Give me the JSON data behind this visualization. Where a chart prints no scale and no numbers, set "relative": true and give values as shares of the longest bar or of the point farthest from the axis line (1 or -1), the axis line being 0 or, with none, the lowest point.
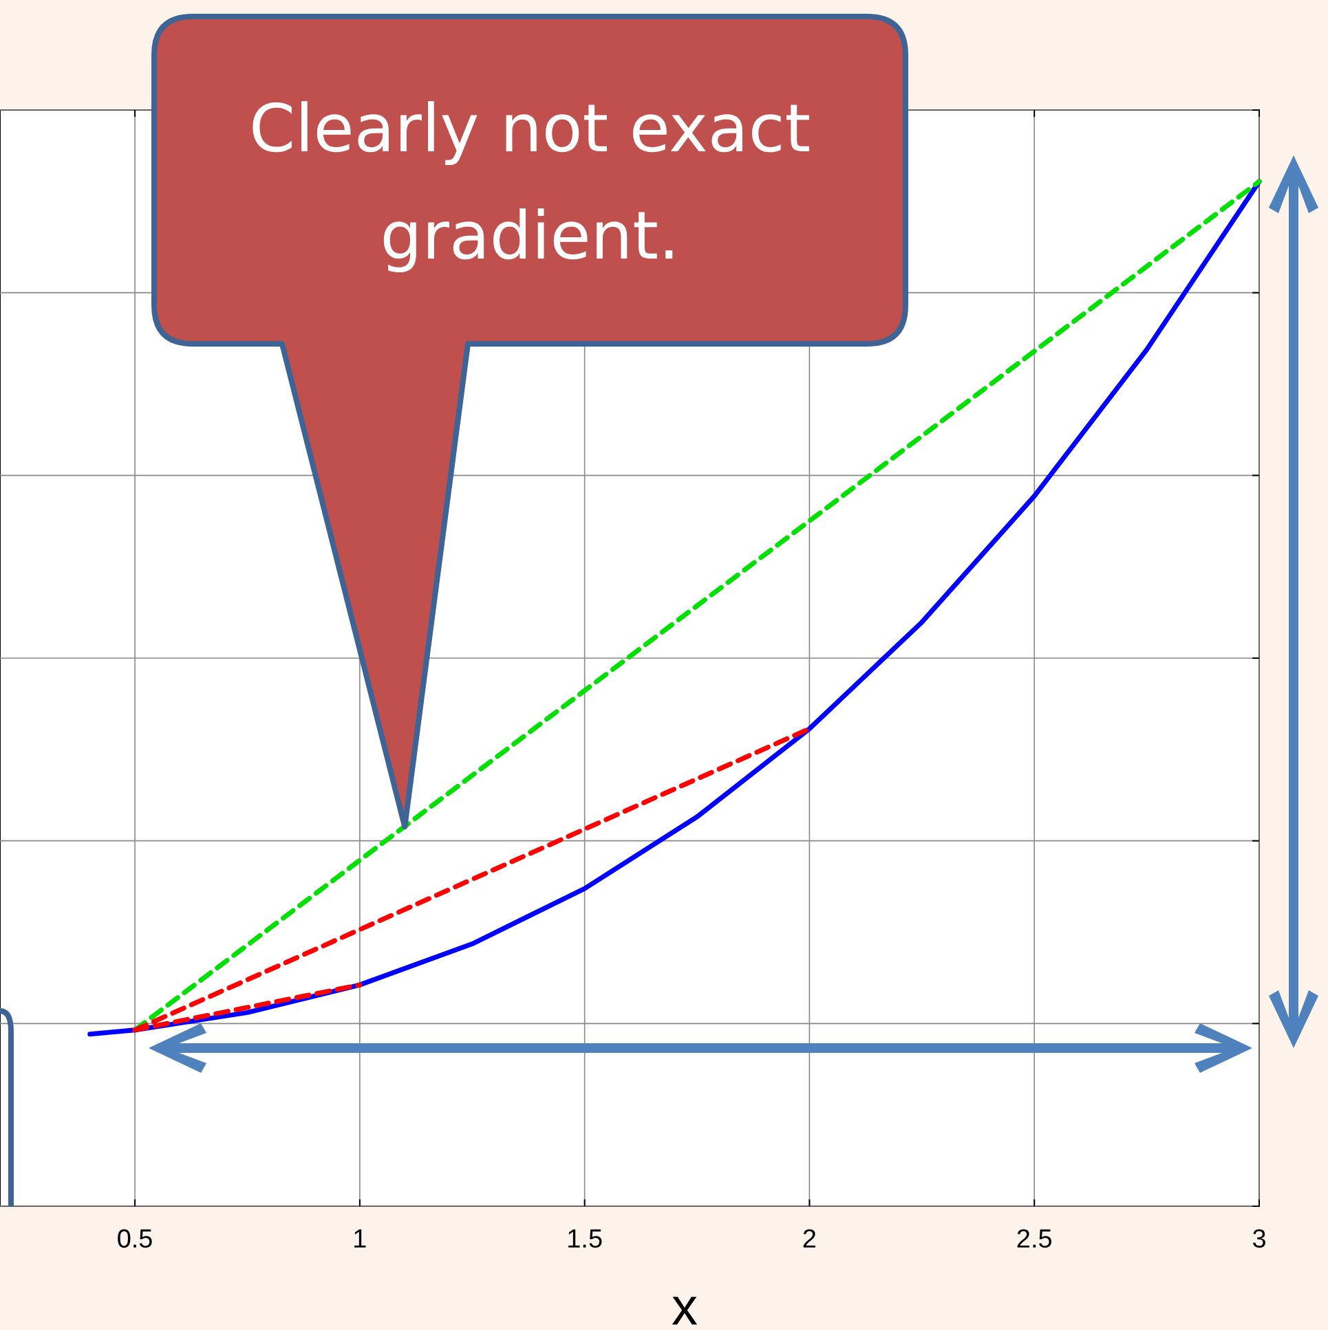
{
  "chart_data": {
    "type": "line",
    "xlabel": "x",
    "relative": true,
    "xlim": [
      0.2,
      3
    ],
    "xticks": [
      0.5,
      1,
      1.5,
      2,
      2.5,
      3
    ],
    "tick_labels": "x",
    "grid": true,
    "series": [
      {
        "color": "#0000ff",
        "line_style": "solid",
        "x": [
          0.4,
          0.5,
          0.75,
          1,
          1.25,
          1.5,
          1.75,
          2,
          2.25,
          2.5,
          2.75,
          3
        ],
        "values": [
          0.168,
          0.172,
          0.189,
          0.216,
          0.256,
          0.31,
          0.38,
          0.466,
          0.57,
          0.693,
          0.836,
          1
        ]
      },
      {
        "color": "#00e000",
        "line_style": "dashed",
        "x": [
          0.5,
          3
        ],
        "values": [
          0.172,
          1
        ]
      },
      {
        "color": "#ff0000",
        "line_style": "dashed",
        "x": [
          0.5,
          2
        ],
        "values": [
          0.172,
          0.466
        ]
      },
      {
        "color": "#ff0000",
        "line_style": "dashed",
        "x": [
          0.5,
          1
        ],
        "values": [
          0.172,
          0.216
        ]
      }
    ],
    "annotations": [
      "Clearly not exact gradient."
    ]
  }
}
